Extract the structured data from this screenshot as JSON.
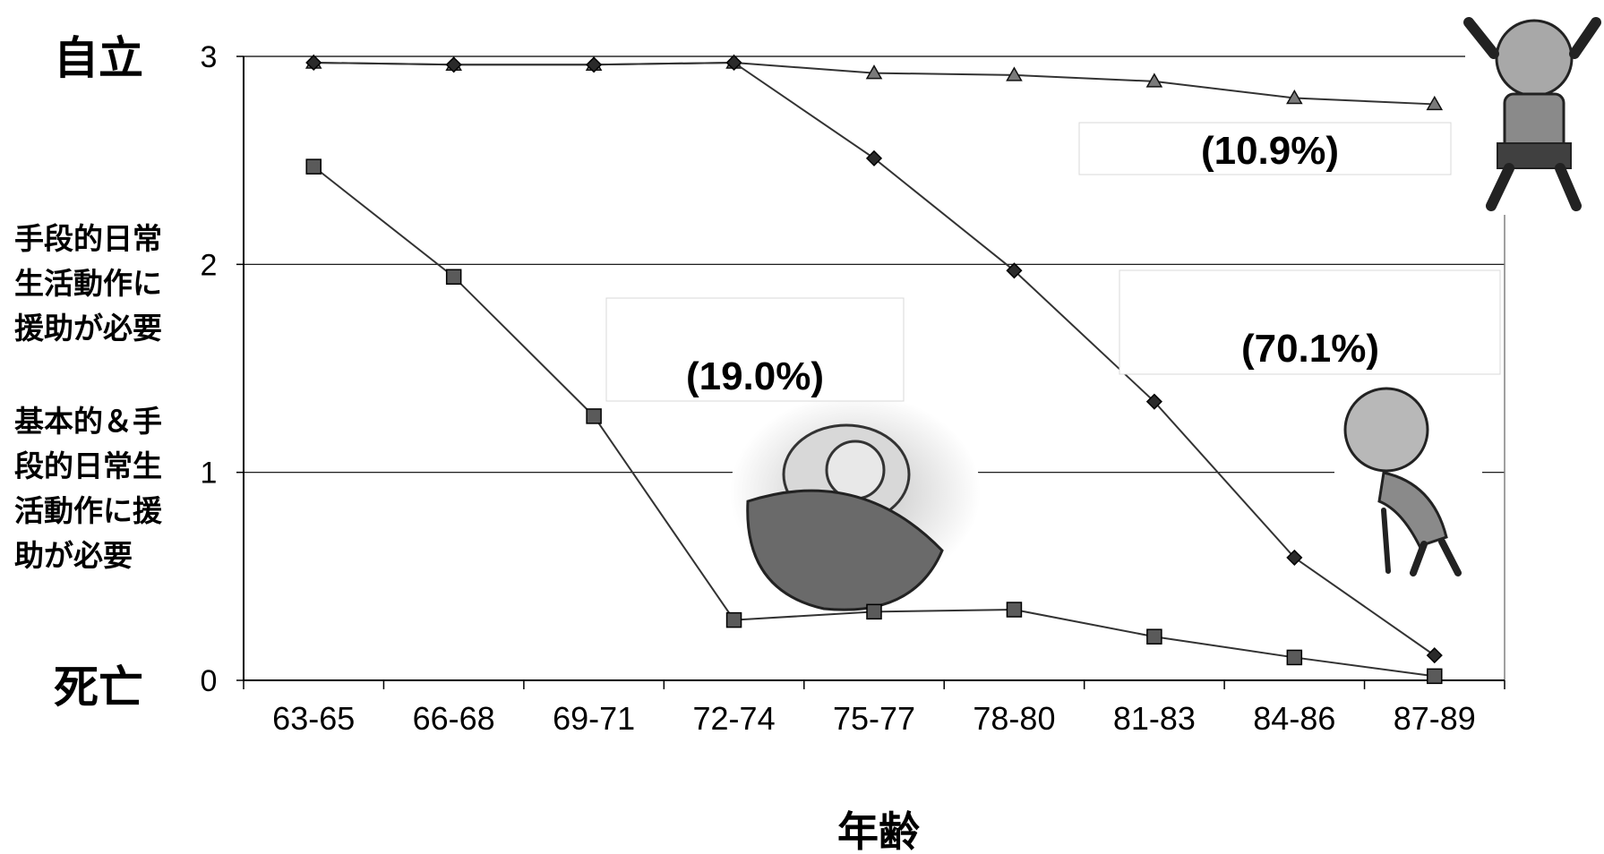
{
  "chart_data": {
    "type": "line",
    "categories": [
      "63-65",
      "66-68",
      "69-71",
      "72-74",
      "75-77",
      "78-80",
      "81-83",
      "84-86",
      "87-89"
    ],
    "xlabel": "年齢",
    "ylabel": "",
    "ylim": [
      0,
      3
    ],
    "yticks": [
      0,
      1,
      2,
      3
    ],
    "y_level_labels": [
      {
        "value": 3,
        "text": [
          "自立"
        ]
      },
      {
        "value": 2,
        "text": [
          "手段的日常",
          "生活動作に",
          "援助が必要"
        ]
      },
      {
        "value": 1,
        "text": [
          "基本的＆手",
          "段的日常生",
          "活動作に援",
          "助が必要"
        ]
      },
      {
        "value": 0,
        "text": [
          "死亡"
        ]
      }
    ],
    "grid": "horizontal",
    "series": [
      {
        "marker": "triangle",
        "percent_label": "(10.9%)",
        "values": [
          2.97,
          2.96,
          2.96,
          2.97,
          2.92,
          2.91,
          2.88,
          2.8,
          2.77
        ]
      },
      {
        "marker": "diamond",
        "percent_label": "(70.1%)",
        "values": [
          2.97,
          2.96,
          2.96,
          2.97,
          2.51,
          1.97,
          1.34,
          0.59,
          0.12
        ]
      },
      {
        "marker": "square",
        "percent_label": "(19.0%)",
        "values": [
          2.47,
          1.94,
          1.27,
          0.29,
          0.33,
          0.34,
          0.21,
          0.11,
          0.02
        ]
      }
    ],
    "illustrations": [
      "active-elderly-man-icon",
      "bedridden-elderly-person-icon",
      "elderly-man-with-cane-icon"
    ]
  }
}
